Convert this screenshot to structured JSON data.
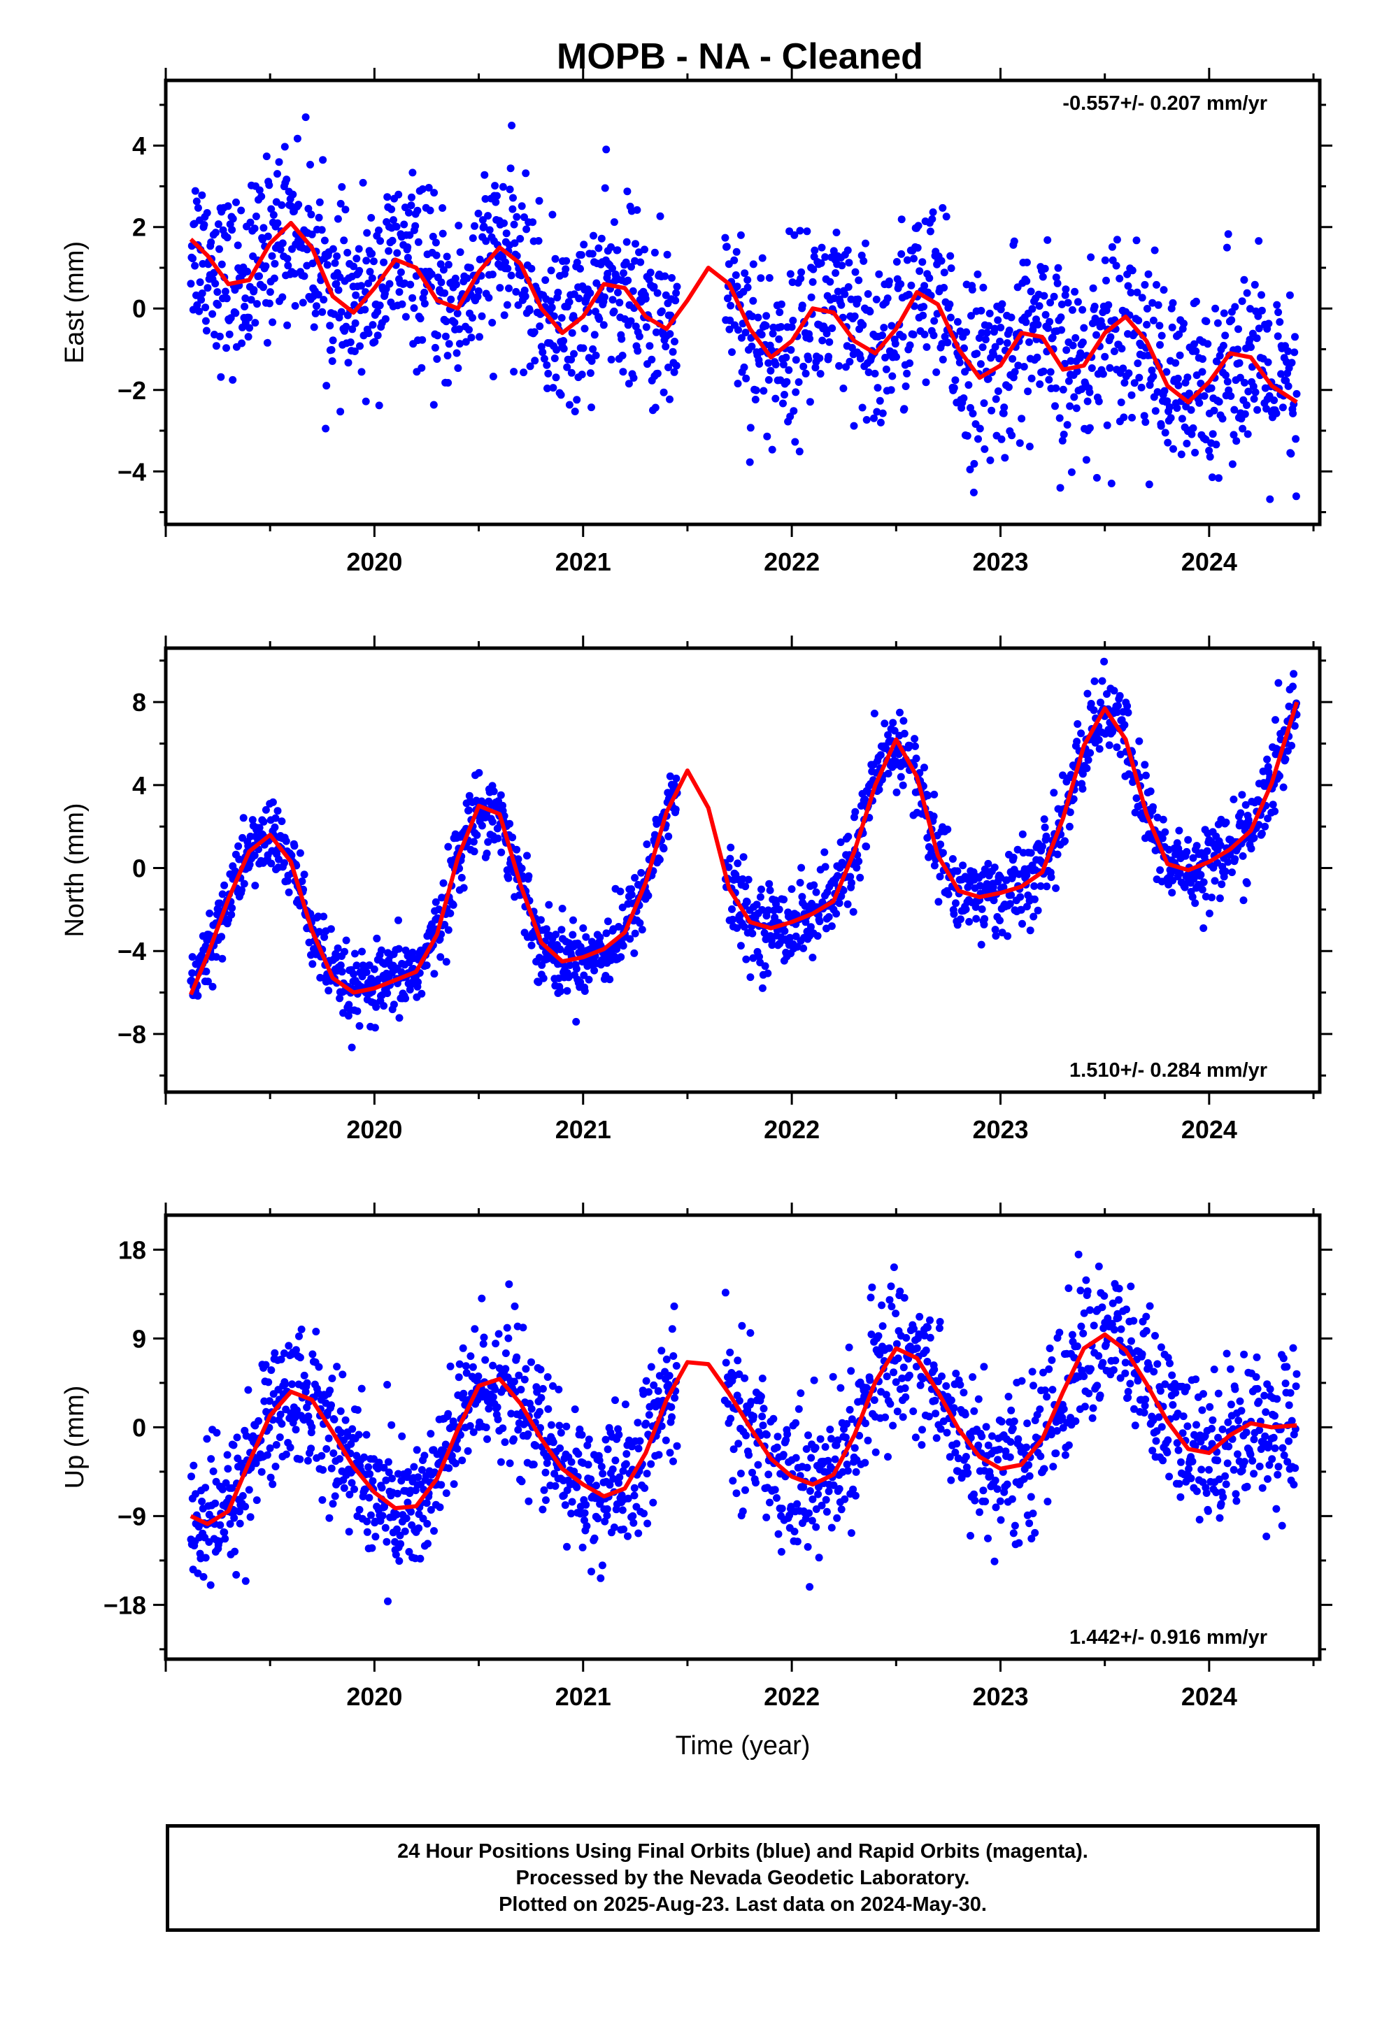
{
  "figure": {
    "title": "MOPB  - NA - Cleaned"
  },
  "footer": {
    "line1": "24 Hour Positions Using Final Orbits (blue) and Rapid Orbits (magenta).",
    "line2": "Processed by the Nevada Geodetic Laboratory.",
    "line3": "Plotted on 2025-Aug-23. Last data on 2024-May-30."
  },
  "colors": {
    "points": "#0000ff",
    "model": "#ff0000",
    "frame": "#000000"
  },
  "chart_data": [
    {
      "type": "scatter",
      "ylabel": "East (mm)",
      "xlabel": "",
      "xlim": [
        2019.0,
        2024.53
      ],
      "ylim": [
        -5.3,
        5.6
      ],
      "yticks": [
        4,
        2,
        0,
        -2,
        -4
      ],
      "ytick_labels": [
        "4",
        "2",
        "0",
        "−2",
        "−4"
      ],
      "xticks": [
        2020,
        2021,
        2022,
        2023,
        2024
      ],
      "xtick_labels": [
        "2020",
        "2021",
        "2022",
        "2023",
        "2024"
      ],
      "rate": "-0.557+/- 0.207 mm/yr",
      "rate_position": "top-right",
      "model_fit": {
        "name": "model",
        "x": [
          2019.12,
          2019.2,
          2019.3,
          2019.4,
          2019.5,
          2019.6,
          2019.7,
          2019.8,
          2019.9,
          2020.0,
          2020.1,
          2020.2,
          2020.3,
          2020.4,
          2020.5,
          2020.6,
          2020.7,
          2020.8,
          2020.9,
          2021.0,
          2021.1,
          2021.2,
          2021.3,
          2021.4,
          2021.5,
          2021.6,
          2021.7,
          2021.8,
          2021.9,
          2022.0,
          2022.1,
          2022.2,
          2022.3,
          2022.4,
          2022.5,
          2022.6,
          2022.7,
          2022.8,
          2022.9,
          2023.0,
          2023.1,
          2023.2,
          2023.3,
          2023.4,
          2023.5,
          2023.6,
          2023.7,
          2023.8,
          2023.9,
          2024.0,
          2024.1,
          2024.2,
          2024.3,
          2024.42
        ],
        "y": [
          1.7,
          1.3,
          0.6,
          0.7,
          1.6,
          2.1,
          1.5,
          0.3,
          -0.1,
          0.5,
          1.2,
          1.0,
          0.2,
          0.0,
          0.9,
          1.5,
          1.1,
          0.0,
          -0.6,
          -0.2,
          0.6,
          0.5,
          -0.2,
          -0.5,
          0.2,
          1.0,
          0.6,
          -0.5,
          -1.2,
          -0.8,
          0.0,
          -0.1,
          -0.8,
          -1.1,
          -0.5,
          0.4,
          0.1,
          -1.0,
          -1.7,
          -1.4,
          -0.6,
          -0.7,
          -1.5,
          -1.4,
          -0.6,
          -0.2,
          -0.8,
          -1.9,
          -2.3,
          -1.8,
          -1.1,
          -1.2,
          -1.9,
          -2.3
        ]
      },
      "scatter_series": {
        "name": "daily positions",
        "segments": [
          {
            "x_start": 2019.12,
            "x_end": 2021.45,
            "spread": 1.05,
            "points": 840
          },
          {
            "x_start": 2021.68,
            "x_end": 2024.42,
            "spread": 1.15,
            "points": 900
          }
        ]
      }
    },
    {
      "type": "scatter",
      "ylabel": "North (mm)",
      "xlabel": "",
      "xlim": [
        2019.0,
        2024.53
      ],
      "ylim": [
        -10.8,
        10.6
      ],
      "yticks": [
        8,
        4,
        0,
        -4,
        -8
      ],
      "ytick_labels": [
        "8",
        "4",
        "0",
        "−4",
        "−8"
      ],
      "xticks": [
        2020,
        2021,
        2022,
        2023,
        2024
      ],
      "xtick_labels": [
        "2020",
        "2021",
        "2022",
        "2023",
        "2024"
      ],
      "rate": "1.510+/- 0.284 mm/yr",
      "rate_position": "bottom-right",
      "model_fit": {
        "name": "model",
        "x": [
          2019.12,
          2019.2,
          2019.3,
          2019.4,
          2019.5,
          2019.6,
          2019.7,
          2019.8,
          2019.9,
          2020.0,
          2020.1,
          2020.2,
          2020.3,
          2020.4,
          2020.5,
          2020.6,
          2020.7,
          2020.8,
          2020.9,
          2021.0,
          2021.1,
          2021.2,
          2021.3,
          2021.4,
          2021.5,
          2021.6,
          2021.7,
          2021.8,
          2021.9,
          2022.0,
          2022.1,
          2022.2,
          2022.3,
          2022.4,
          2022.5,
          2022.6,
          2022.7,
          2022.8,
          2022.9,
          2023.0,
          2023.1,
          2023.2,
          2023.3,
          2023.4,
          2023.5,
          2023.6,
          2023.7,
          2023.8,
          2023.9,
          2024.0,
          2024.1,
          2024.2,
          2024.3,
          2024.42
        ],
        "y": [
          -6.1,
          -4.2,
          -1.5,
          0.8,
          1.6,
          0.3,
          -3.0,
          -5.3,
          -6.0,
          -5.8,
          -5.4,
          -5.0,
          -3.2,
          0.5,
          3.0,
          2.6,
          -0.8,
          -3.6,
          -4.5,
          -4.3,
          -3.9,
          -3.1,
          -0.7,
          2.7,
          4.7,
          2.9,
          -1.0,
          -2.6,
          -2.9,
          -2.6,
          -2.2,
          -1.6,
          0.8,
          4.0,
          6.2,
          4.4,
          0.6,
          -1.1,
          -1.4,
          -1.2,
          -0.9,
          -0.2,
          2.4,
          5.9,
          7.7,
          6.2,
          2.6,
          0.2,
          -0.1,
          0.3,
          0.9,
          1.8,
          4.1,
          8.0
        ]
      },
      "scatter_series": {
        "name": "daily positions",
        "segments": [
          {
            "x_start": 2019.12,
            "x_end": 2021.45,
            "spread": 0.9,
            "points": 840
          },
          {
            "x_start": 2021.68,
            "x_end": 2024.42,
            "spread": 1.0,
            "points": 900
          }
        ]
      }
    },
    {
      "type": "scatter",
      "ylabel": "Up (mm)",
      "xlabel": "Time (year)",
      "xlim": [
        2019.0,
        2024.53
      ],
      "ylim": [
        -23.5,
        21.5
      ],
      "yticks": [
        18,
        9,
        0,
        -9,
        -18
      ],
      "ytick_labels": [
        "18",
        "9",
        "0",
        "−9",
        "−18"
      ],
      "xticks": [
        2020,
        2021,
        2022,
        2023,
        2024
      ],
      "xtick_labels": [
        "2020",
        "2021",
        "2022",
        "2023",
        "2024"
      ],
      "rate": "1.442+/- 0.916 mm/yr",
      "rate_position": "bottom-right",
      "model_fit": {
        "name": "model",
        "x": [
          2019.12,
          2019.2,
          2019.3,
          2019.4,
          2019.5,
          2019.6,
          2019.7,
          2019.8,
          2019.9,
          2020.0,
          2020.1,
          2020.2,
          2020.3,
          2020.4,
          2020.5,
          2020.6,
          2020.7,
          2020.8,
          2020.9,
          2021.0,
          2021.1,
          2021.2,
          2021.3,
          2021.4,
          2021.5,
          2021.6,
          2021.7,
          2021.8,
          2021.9,
          2022.0,
          2022.1,
          2022.2,
          2022.3,
          2022.4,
          2022.5,
          2022.6,
          2022.7,
          2022.8,
          2022.9,
          2023.0,
          2023.1,
          2023.2,
          2023.3,
          2023.4,
          2023.5,
          2023.6,
          2023.7,
          2023.8,
          2023.9,
          2024.0,
          2024.1,
          2024.2,
          2024.3,
          2024.42
        ],
        "y": [
          -9.0,
          -9.8,
          -8.5,
          -3.5,
          1.2,
          3.6,
          2.8,
          -0.5,
          -4.0,
          -6.6,
          -8.2,
          -8.0,
          -5.2,
          -0.2,
          4.2,
          4.9,
          2.4,
          -1.2,
          -4.2,
          -5.8,
          -7.0,
          -6.2,
          -2.6,
          2.8,
          6.6,
          6.4,
          3.4,
          0.0,
          -3.2,
          -5.0,
          -5.8,
          -4.8,
          -0.8,
          4.6,
          8.0,
          7.0,
          3.6,
          -0.2,
          -3.0,
          -4.2,
          -3.8,
          -1.2,
          3.6,
          8.0,
          9.4,
          7.8,
          4.4,
          0.6,
          -2.2,
          -2.6,
          -0.8,
          0.4,
          0.0,
          0.2
        ]
      },
      "scatter_series": {
        "name": "daily positions",
        "segments": [
          {
            "x_start": 2019.12,
            "x_end": 2021.45,
            "spread": 3.6,
            "points": 840
          },
          {
            "x_start": 2021.68,
            "x_end": 2024.42,
            "spread": 3.8,
            "points": 900
          }
        ]
      }
    }
  ]
}
